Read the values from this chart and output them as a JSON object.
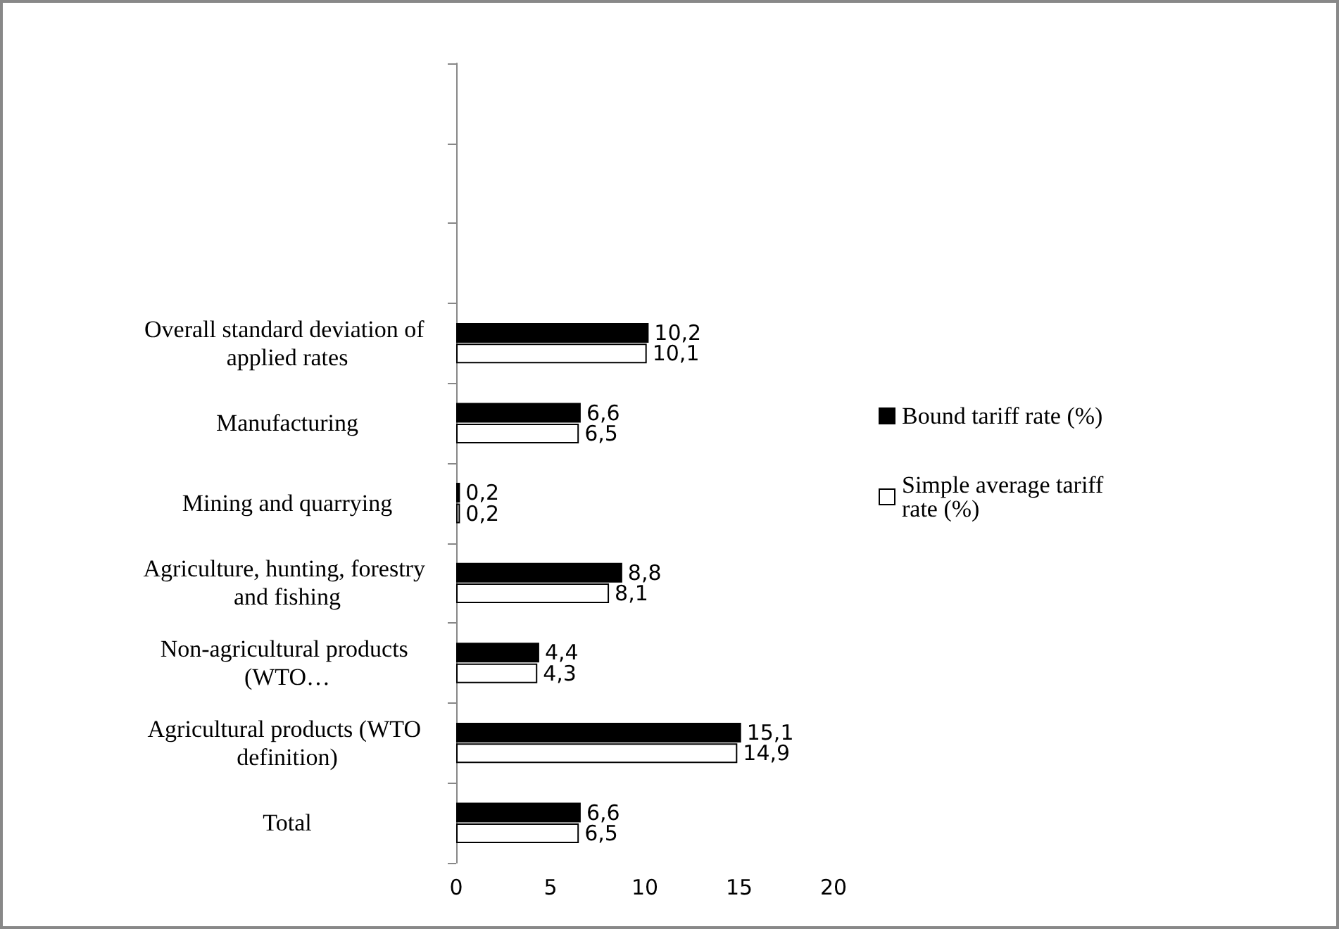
{
  "chart_data": {
    "type": "bar",
    "orientation": "horizontal",
    "categories": [
      null,
      null,
      null,
      "Overall standard deviation of applied rates",
      "Manufacturing",
      "Mining and quarrying",
      "Agriculture, hunting, forestry and fishing",
      "Non-agricultural products (WTO…",
      "Agricultural products (WTO definition)",
      "Total"
    ],
    "series": [
      {
        "name": "Bound tariff rate (%)",
        "color": "#000000",
        "values": [
          null,
          null,
          null,
          10.2,
          6.6,
          0.2,
          8.8,
          4.4,
          15.1,
          6.6
        ],
        "value_labels": [
          null,
          null,
          null,
          "10,2",
          "6,6",
          "0,2",
          "8,8",
          "4,4",
          "15,1",
          "6,6"
        ]
      },
      {
        "name": "Simple average tariff rate (%)",
        "color": "#ffffff",
        "values": [
          null,
          null,
          null,
          10.1,
          6.5,
          0.2,
          8.1,
          4.3,
          14.9,
          6.5
        ],
        "value_labels": [
          null,
          null,
          null,
          "10,1",
          "6,5",
          "0,2",
          "8,1",
          "4,3",
          "14,9",
          "6,5"
        ]
      }
    ],
    "xlim": [
      0,
      20
    ],
    "xticks": [
      0,
      5,
      10,
      15,
      20
    ],
    "grid": false,
    "legend": "right"
  }
}
